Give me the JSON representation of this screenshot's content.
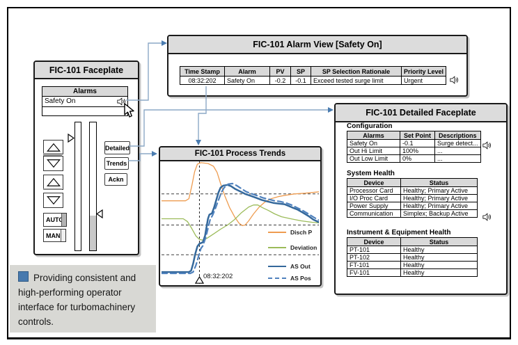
{
  "colors": {
    "accent_blue": "#4F81BD",
    "connector_line": "#8CA8C6",
    "arrowhead": "#4A7CB0",
    "panel_title_bg": "#DCDCDC",
    "table_header_bg": "#D9D9D9",
    "caption_bg": "#D8D8D4",
    "slider_fill": "#C9C9C9"
  },
  "faceplate": {
    "title": "FIC-101 Faceplate",
    "alarms_header": "Alarms",
    "active_alarm": "Safety On",
    "buttons": {
      "detailed": "Detailed",
      "trends": "Trends",
      "ackn": "Ackn",
      "auto": "AUTO",
      "man": "MAN"
    }
  },
  "alarm_view": {
    "title": "FIC-101 Alarm View [Safety On]",
    "headers": [
      "Time Stamp",
      "Alarm",
      "PV",
      "SP",
      "SP Selection Rationale",
      "Priority Level"
    ],
    "row": [
      "08:32:202",
      "Safety On",
      "-0.2",
      "-0.1",
      "Exceed tested surge limit",
      "Urgent"
    ]
  },
  "trends": {
    "title": "FIC-101 Process Trends"
  },
  "detailed": {
    "title": "FIC-101 Detailed Faceplate",
    "configuration": {
      "heading": "Configuration",
      "headers": [
        "Alarms",
        "Set Point",
        "Descriptions"
      ],
      "rows": [
        [
          "Safety On",
          "-0.1",
          "Surge detect..."
        ],
        [
          "Out Hi Limit",
          "100%",
          "..."
        ],
        [
          "Out Low Limit",
          "0%",
          "..."
        ]
      ]
    },
    "system_health": {
      "heading": "System Health",
      "headers": [
        "Device",
        "Status"
      ],
      "rows": [
        [
          "Processor Card",
          "Healthy; Primary Active"
        ],
        [
          "I/O Proc Card",
          "Healthy; Primary Active"
        ],
        [
          "Power Supply",
          "Healthy; Primary Active"
        ],
        [
          "Communication",
          "Simplex; Backup Active"
        ]
      ]
    },
    "instrument_health": {
      "heading": "Instrument & Equipment Health",
      "headers": [
        "Device",
        "Status"
      ],
      "rows": [
        [
          "PT-101",
          "Healthy"
        ],
        [
          "PT-102",
          "Healthy"
        ],
        [
          "FT-101",
          "Healthy"
        ],
        [
          "FV-101",
          "Healthy"
        ]
      ]
    }
  },
  "caption": {
    "text": "Providing consistent and high-performing operator interface for turbomachinery controls."
  },
  "icons": [
    "speaker-icon",
    "cursor-arrow-icon",
    "triangle-up-icon",
    "triangle-down-icon",
    "slider-marker-right-icon",
    "slider-marker-left-icon",
    "event-marker-icon"
  ],
  "connectors": [
    "faceplate safety-on alarm -> FIC-101 Alarm View",
    "alarm view time-stamp row -> FIC-101 Process Trends",
    "faceplate Detailed button -> FIC-101 Detailed Faceplate",
    "faceplate Trends button -> FIC-101 Process Trends"
  ],
  "chart_data": {
    "type": "line",
    "title": "FIC-101 Process Trends",
    "xlabel": "",
    "ylabel": "",
    "xlim": [
      0,
      100
    ],
    "ylim": [
      0,
      100
    ],
    "axes_visible": false,
    "grid": "dashed horizontal guides + dashed vertical event line",
    "gridlines_y": [
      73.4,
      48.0,
      23.7
    ],
    "event_marker": {
      "x": 24.1,
      "label": "08:32:202"
    },
    "legend_position": "inside lower right",
    "series": [
      {
        "name": "Disch P",
        "color": "#EE9C50",
        "style": "solid",
        "width": 1.3,
        "points": [
          [
            0,
            67.8
          ],
          [
            15.2,
            67.8
          ],
          [
            17.4,
            69.5
          ],
          [
            19.2,
            79.7
          ],
          [
            21,
            91.5
          ],
          [
            22.8,
            97.7
          ],
          [
            25,
            98.9
          ],
          [
            29.5,
            98.3
          ],
          [
            33,
            96
          ],
          [
            35.3,
            91
          ],
          [
            37.5,
            81.9
          ],
          [
            40.2,
            71.8
          ],
          [
            43.3,
            62.1
          ],
          [
            46.4,
            54.8
          ],
          [
            49.1,
            49.7
          ],
          [
            51.3,
            47.5
          ],
          [
            53.1,
            48
          ],
          [
            55.4,
            51.4
          ],
          [
            58.5,
            57.1
          ],
          [
            62.1,
            62.7
          ],
          [
            65.6,
            66.7
          ],
          [
            69.6,
            69.5
          ],
          [
            74.1,
            71.2
          ],
          [
            78.6,
            72.3
          ],
          [
            84.4,
            73.4
          ],
          [
            91.1,
            74
          ],
          [
            100,
            75.1
          ]
        ]
      },
      {
        "name": "Deviation",
        "color": "#9BBB59",
        "style": "solid",
        "width": 1.3,
        "points": [
          [
            0,
            53.1
          ],
          [
            13.8,
            53.1
          ],
          [
            16.5,
            50.8
          ],
          [
            19.2,
            45.2
          ],
          [
            21.9,
            39
          ],
          [
            24.1,
            36.2
          ],
          [
            26.3,
            35.6
          ],
          [
            29,
            37.3
          ],
          [
            33,
            40.7
          ],
          [
            37.5,
            44.6
          ],
          [
            42,
            48
          ],
          [
            46.4,
            52.5
          ],
          [
            50.9,
            58.2
          ],
          [
            55.4,
            62.7
          ],
          [
            58.5,
            64.4
          ],
          [
            61.2,
            64.4
          ],
          [
            64.3,
            62.1
          ],
          [
            67.9,
            59.9
          ],
          [
            71.9,
            57.1
          ],
          [
            76.3,
            54.8
          ],
          [
            82.1,
            53.1
          ],
          [
            88.8,
            51.4
          ],
          [
            95.5,
            50.3
          ],
          [
            100,
            49.7
          ]
        ]
      },
      {
        "name": "AS Out",
        "color": "#34689B",
        "style": "solid",
        "width": 2.5,
        "points": [
          [
            0,
            9.6
          ],
          [
            17.4,
            9.6
          ],
          [
            18.8,
            10.7
          ],
          [
            20.1,
            16.4
          ],
          [
            21.4,
            24.3
          ],
          [
            22.8,
            30.5
          ],
          [
            24.1,
            32.8
          ],
          [
            26.3,
            33.9
          ],
          [
            27.7,
            39.5
          ],
          [
            28.6,
            46.3
          ],
          [
            29.5,
            53.1
          ],
          [
            30.4,
            56.5
          ],
          [
            32.1,
            57.6
          ],
          [
            33.5,
            62.7
          ],
          [
            34.8,
            68.4
          ],
          [
            36.2,
            74.6
          ],
          [
            37.5,
            78.5
          ],
          [
            39.3,
            80.2
          ],
          [
            42,
            80.8
          ],
          [
            44.2,
            79.7
          ],
          [
            46.9,
            77.4
          ],
          [
            49.6,
            75.7
          ],
          [
            53.1,
            73.4
          ],
          [
            56.7,
            71.8
          ],
          [
            60.3,
            70.1
          ],
          [
            63.8,
            68.4
          ],
          [
            67.4,
            67.2
          ],
          [
            71,
            66.1
          ],
          [
            74.6,
            65.5
          ],
          [
            78.1,
            65
          ],
          [
            80.4,
            63.8
          ],
          [
            83.5,
            62.1
          ],
          [
            86.6,
            60.5
          ],
          [
            89.7,
            58.2
          ],
          [
            93.3,
            55.4
          ],
          [
            96.4,
            52.5
          ],
          [
            100,
            50.3
          ]
        ]
      },
      {
        "name": "AS Pos",
        "color": "#4F81BD",
        "style": "dashed",
        "width": 2.2,
        "points": [
          [
            0,
            8.5
          ],
          [
            18.3,
            8.5
          ],
          [
            20.1,
            9.6
          ],
          [
            21.9,
            15.3
          ],
          [
            23.7,
            23.2
          ],
          [
            25,
            28.8
          ],
          [
            26.3,
            31.1
          ],
          [
            28.1,
            37.9
          ],
          [
            29.5,
            45.2
          ],
          [
            30.8,
            52
          ],
          [
            32.6,
            56.5
          ],
          [
            34.4,
            62.1
          ],
          [
            36.2,
            68.4
          ],
          [
            38,
            74.6
          ],
          [
            39.8,
            78.5
          ],
          [
            42.4,
            81.4
          ],
          [
            45.1,
            81.9
          ],
          [
            47.8,
            80.2
          ],
          [
            50.4,
            78
          ],
          [
            54,
            75.1
          ],
          [
            57.6,
            73.4
          ],
          [
            61.2,
            71.8
          ],
          [
            64.7,
            70.1
          ],
          [
            68.3,
            69
          ],
          [
            71.9,
            67.8
          ],
          [
            75.4,
            67.2
          ],
          [
            79,
            66.1
          ],
          [
            82.6,
            64.4
          ],
          [
            86.2,
            62.1
          ],
          [
            89.7,
            59.9
          ],
          [
            93.3,
            57.1
          ],
          [
            96.9,
            54.2
          ],
          [
            100,
            52
          ]
        ]
      }
    ]
  }
}
